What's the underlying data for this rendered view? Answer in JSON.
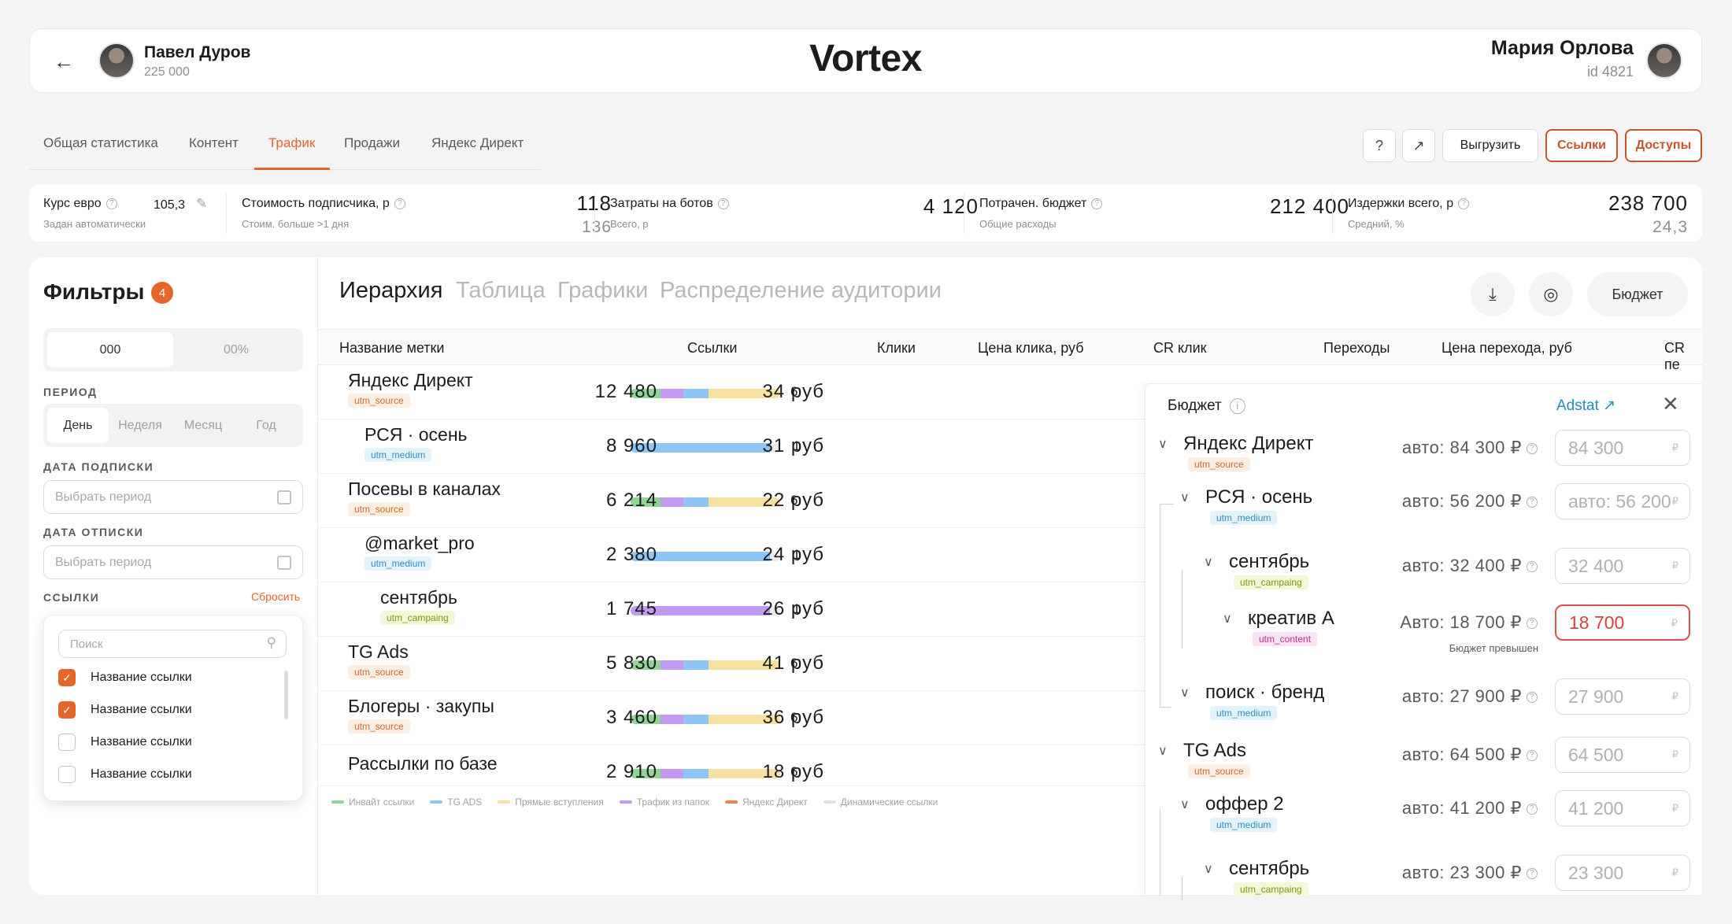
{
  "header": {
    "user_left": {
      "name": "Павел Дуров",
      "count": "225 000"
    },
    "logo": "Vortex",
    "user_right": {
      "name": "Мария Орлова",
      "id": "id 4821"
    }
  },
  "tabs": [
    "Общая статистика",
    "Контент",
    "Трафик",
    "Продажи",
    "Яндекс Директ"
  ],
  "active_tab": "Трафик",
  "toolbar": {
    "export": "Выгрузить",
    "links": "Ссылки",
    "access": "Доступы"
  },
  "stats": {
    "euro": {
      "label": "Курс евро",
      "sub": "Задан автоматически",
      "value": "105,3"
    },
    "subscriber": {
      "label": "Стоимость подписчика, р",
      "sub": "Стоим. больше >1 дня",
      "value": "118",
      "value2": "136"
    },
    "bots": {
      "label": "Затраты на ботов",
      "sub": "Всего, р",
      "value": "4 120"
    },
    "budget": {
      "label": "Потрачен. бюджет",
      "sub": "Общие расходы",
      "value": "212 400"
    },
    "costs": {
      "label": "Издержки всего, р",
      "sub": "Средний, %",
      "value": "238 700",
      "value2": "24,3"
    }
  },
  "filters": {
    "title": "Фильтры",
    "badge": "4",
    "seg": [
      "000",
      "00%"
    ],
    "period_label": "ПЕРИОД",
    "periods": [
      "День",
      "Неделя",
      "Месяц",
      "Год"
    ],
    "sub_date_label": "ДАТА ПОДПИСКИ",
    "sub_date_placeholder": "Выбрать период",
    "unsub_date_label": "ДАТА ОТПИСКИ",
    "unsub_date_placeholder": "Выбрать период",
    "links_label": "ССЫЛКИ",
    "reset": "Сбросить",
    "search_placeholder": "Поиск",
    "options": [
      {
        "label": "Название ссылки",
        "checked": true
      },
      {
        "label": "Название ссылки",
        "checked": true
      },
      {
        "label": "Название ссылки",
        "checked": false
      },
      {
        "label": "Название ссылки",
        "checked": false
      }
    ]
  },
  "views": [
    "Иерархия",
    "Таблица",
    "Графики",
    "Распределение аудитории"
  ],
  "budget_button": "Бюджет",
  "table": {
    "headers": [
      "Название метки",
      "Ссылки",
      "Клики",
      "Цена клика, руб",
      "CR клик",
      "Переходы",
      "Цена перехода, руб",
      "CR пе"
    ],
    "rows": [
      {
        "name": "Яндекс Директ",
        "tag": "utm_source",
        "tagtype": "src",
        "indent": 0,
        "count": "6",
        "clicks": "12 480",
        "price": "34 руб",
        "bar": [
          [
            "#8fd694",
            0.2
          ],
          [
            "#c39af2",
            0.15
          ],
          [
            "#8ec5f5",
            0.17
          ],
          [
            "#f8e0a0",
            0.48
          ]
        ]
      },
      {
        "name": "РСЯ · осень",
        "tag": "utm_medium",
        "tagtype": "med",
        "indent": 1,
        "count": "1",
        "clicks": "8 960",
        "price": "31 руб",
        "bar": [
          [
            "#8ec5f5",
            0.93
          ]
        ]
      },
      {
        "name": "Посевы в каналах",
        "tag": "utm_source",
        "tagtype": "src",
        "indent": 0,
        "count": "6",
        "clicks": "6 214",
        "price": "22 руб",
        "bar": [
          [
            "#8fd694",
            0.2
          ],
          [
            "#c39af2",
            0.15
          ],
          [
            "#8ec5f5",
            0.17
          ],
          [
            "#f8e0a0",
            0.48
          ]
        ]
      },
      {
        "name": "@market_pro",
        "tag": "utm_medium",
        "tagtype": "med",
        "indent": 1,
        "count": "1",
        "clicks": "2 380",
        "price": "24 руб",
        "bar": [
          [
            "#8ec5f5",
            0.93
          ]
        ]
      },
      {
        "name": "сентябрь",
        "tag": "utm_campaing",
        "tagtype": "cmp",
        "indent": 2,
        "count": "1",
        "clicks": "1 745",
        "price": "26 руб",
        "bar": [
          [
            "#c39af2",
            0.93
          ]
        ]
      },
      {
        "name": "TG Ads",
        "tag": "utm_source",
        "tagtype": "src",
        "indent": 0,
        "count": "6",
        "clicks": "5 830",
        "price": "41 руб",
        "bar": [
          [
            "#8fd694",
            0.2
          ],
          [
            "#c39af2",
            0.15
          ],
          [
            "#8ec5f5",
            0.17
          ],
          [
            "#f8e0a0",
            0.48
          ]
        ]
      },
      {
        "name": "Блогеры · закупы",
        "tag": "utm_source",
        "tagtype": "src",
        "indent": 0,
        "count": "6",
        "clicks": "3 460",
        "price": "36 руб",
        "bar": [
          [
            "#8fd694",
            0.2
          ],
          [
            "#c39af2",
            0.15
          ],
          [
            "#8ec5f5",
            0.17
          ],
          [
            "#f8e0a0",
            0.48
          ]
        ]
      },
      {
        "name": "Рассылки по базе",
        "tag": "",
        "tagtype": "src",
        "indent": 0,
        "count": "6",
        "clicks": "2 910",
        "price": "18 руб",
        "bar": [
          [
            "#8fd694",
            0.2
          ],
          [
            "#c39af2",
            0.15
          ],
          [
            "#8ec5f5",
            0.17
          ],
          [
            "#f8e0a0",
            0.48
          ]
        ]
      }
    ],
    "legend": [
      {
        "label": "Инвайт ссылки",
        "color": "#8fd694"
      },
      {
        "label": "TG ADS",
        "color": "#8ec5f5"
      },
      {
        "label": "Прямые вступления",
        "color": "#f8e0a0"
      },
      {
        "label": "Трафик из папок",
        "color": "#c39af2"
      },
      {
        "label": "Яндекс Директ",
        "color": "#e4884b"
      },
      {
        "label": "Динамические ссылки",
        "color": "#e0e0e3"
      }
    ]
  },
  "budget_panel": {
    "title": "Бюджет",
    "link": "Adstat",
    "nodes": [
      {
        "name": "Яндекс Директ",
        "tag": "utm_source",
        "tagtype": "src",
        "level": 0,
        "auto": "авто: 84 300 ₽",
        "value": "84 300",
        "filled": false,
        "error": false,
        "note": ""
      },
      {
        "name": "РСЯ · осень",
        "tag": "utm_medium",
        "tagtype": "med",
        "level": 1,
        "auto": "авто: 56 200 ₽",
        "value": "авто: 56 200",
        "filled": false,
        "error": false,
        "note": ""
      },
      {
        "name": "сентябрь",
        "tag": "utm_campaing",
        "tagtype": "cmp",
        "level": 2,
        "auto": "авто: 32 400 ₽",
        "value": "32 400",
        "filled": false,
        "error": false,
        "note": ""
      },
      {
        "name": "креатив А",
        "tag": "utm_content",
        "tagtype": "cnt",
        "level": 3,
        "auto": "Авто: 18 700 ₽",
        "value": "18 700",
        "filled": true,
        "error": true,
        "note": "Бюджет превышен"
      },
      {
        "name": "поиск · бренд",
        "tag": "utm_medium",
        "tagtype": "med",
        "level": 1,
        "auto": "авто: 27 900 ₽",
        "value": "27 900",
        "filled": false,
        "error": false,
        "note": ""
      },
      {
        "name": "TG Ads",
        "tag": "utm_source",
        "tagtype": "src",
        "level": 0,
        "auto": "авто: 64 500 ₽",
        "value": "64 500",
        "filled": false,
        "error": false,
        "note": ""
      },
      {
        "name": "оффер 2",
        "tag": "utm_medium",
        "tagtype": "med",
        "level": 1,
        "auto": "авто: 41 200 ₽",
        "value": "41 200",
        "filled": false,
        "error": false,
        "note": ""
      },
      {
        "name": "сентябрь",
        "tag": "utm_campaing",
        "tagtype": "cmp",
        "level": 2,
        "auto": "авто: 23 300 ₽",
        "value": "23 300",
        "filled": false,
        "error": false,
        "note": ""
      }
    ]
  },
  "currency_mark": "₽"
}
